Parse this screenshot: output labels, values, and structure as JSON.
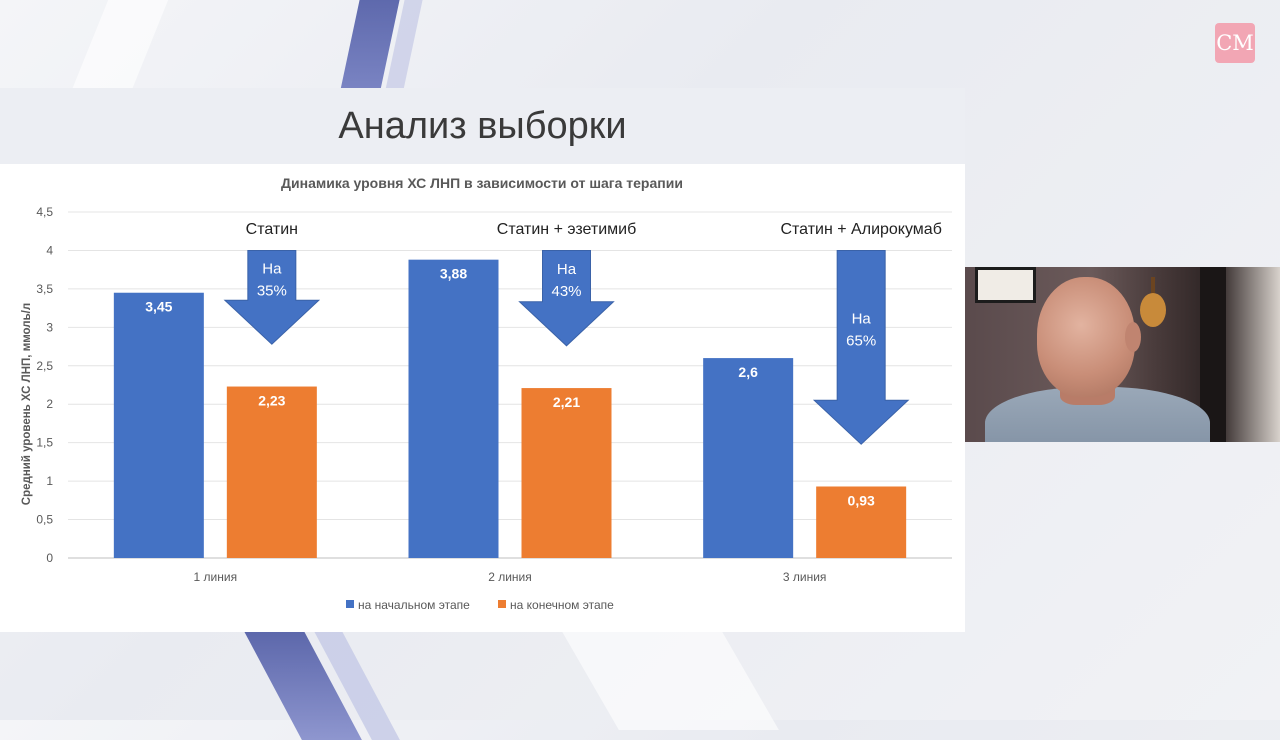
{
  "logo": {
    "text": "CM"
  },
  "slide": {
    "title": "Анализ выборки"
  },
  "chart_data": {
    "type": "bar",
    "title": "Динамика уровня ХС ЛНП в зависимости от шага терапии",
    "xlabel": "",
    "ylabel": "Средний уровень ХС ЛНП, ммоль/л",
    "ylim": [
      0,
      4.5
    ],
    "yticks": [
      0,
      0.5,
      1,
      1.5,
      2,
      2.5,
      3,
      3.5,
      4,
      4.5
    ],
    "ytick_labels": [
      "0",
      "0,5",
      "1",
      "1,5",
      "2",
      "2,5",
      "3",
      "3,5",
      "4",
      "4,5"
    ],
    "categories": [
      "1 линия",
      "2 линия",
      "3 линия"
    ],
    "series": [
      {
        "name": "на начальном этапе",
        "color": "#4472c4",
        "values": [
          3.45,
          3.88,
          2.6
        ],
        "labels": [
          "3,45",
          "3,88",
          "2,6"
        ]
      },
      {
        "name": "на конечном этапе",
        "color": "#ed7d31",
        "values": [
          2.23,
          2.21,
          0.93
        ],
        "labels": [
          "2,23",
          "2,21",
          "0,93"
        ]
      }
    ],
    "grid": true,
    "legend_position": "bottom",
    "annotations": [
      {
        "category": "1 линия",
        "group_title": "Статин",
        "arrow_line1": "На",
        "arrow_line2": "35%"
      },
      {
        "category": "2 линия",
        "group_title": "Статин + эзетимиб",
        "arrow_line1": "На",
        "arrow_line2": "43%"
      },
      {
        "category": "3 линия",
        "group_title": "Статин + Алирокумаб",
        "arrow_line1": "На",
        "arrow_line2": "65%"
      }
    ]
  }
}
